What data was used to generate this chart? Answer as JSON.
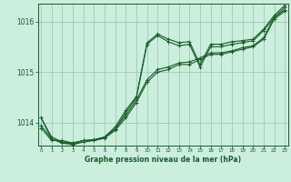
{
  "title": "Graphe pression niveau de la mer (hPa)",
  "bg_color": "#cceedd",
  "grid_color": "#99ccbb",
  "line_color": "#1a5c2a",
  "xlim": [
    -0.3,
    23.3
  ],
  "ylim": [
    1013.55,
    1016.35
  ],
  "yticks": [
    1014,
    1015,
    1016
  ],
  "xticks": [
    0,
    1,
    2,
    3,
    4,
    5,
    6,
    7,
    8,
    9,
    10,
    11,
    12,
    13,
    14,
    15,
    16,
    17,
    18,
    19,
    20,
    21,
    22,
    23
  ],
  "xlabel": "Graphe pression niveau de la mer (hPa)",
  "series": [
    [
      1013.9,
      1013.65,
      1013.65,
      1013.6,
      1013.65,
      1013.65,
      1013.7,
      1013.85,
      1014.1,
      1014.4,
      1014.8,
      1015.0,
      1015.05,
      1015.15,
      1015.15,
      1015.25,
      1015.35,
      1015.35,
      1015.4,
      1015.45,
      1015.5,
      1015.65,
      1016.05,
      1016.2
    ],
    [
      1013.95,
      1013.68,
      1013.62,
      1013.6,
      1013.65,
      1013.65,
      1013.72,
      1013.88,
      1014.15,
      1014.45,
      1014.85,
      1015.05,
      1015.1,
      1015.18,
      1015.2,
      1015.28,
      1015.38,
      1015.38,
      1015.42,
      1015.48,
      1015.52,
      1015.68,
      1016.08,
      1016.23
    ],
    [
      1014.1,
      1013.68,
      1013.6,
      1013.57,
      1013.62,
      1013.65,
      1013.7,
      1013.88,
      1014.2,
      1014.5,
      1015.55,
      1015.72,
      1015.6,
      1015.52,
      1015.55,
      1015.1,
      1015.5,
      1015.5,
      1015.55,
      1015.58,
      1015.62,
      1015.82,
      1016.08,
      1016.28
    ],
    [
      1014.1,
      1013.72,
      1013.62,
      1013.58,
      1013.65,
      1013.67,
      1013.72,
      1013.92,
      1014.25,
      1014.52,
      1015.58,
      1015.75,
      1015.65,
      1015.58,
      1015.6,
      1015.15,
      1015.55,
      1015.55,
      1015.6,
      1015.62,
      1015.65,
      1015.85,
      1016.12,
      1016.32
    ]
  ]
}
